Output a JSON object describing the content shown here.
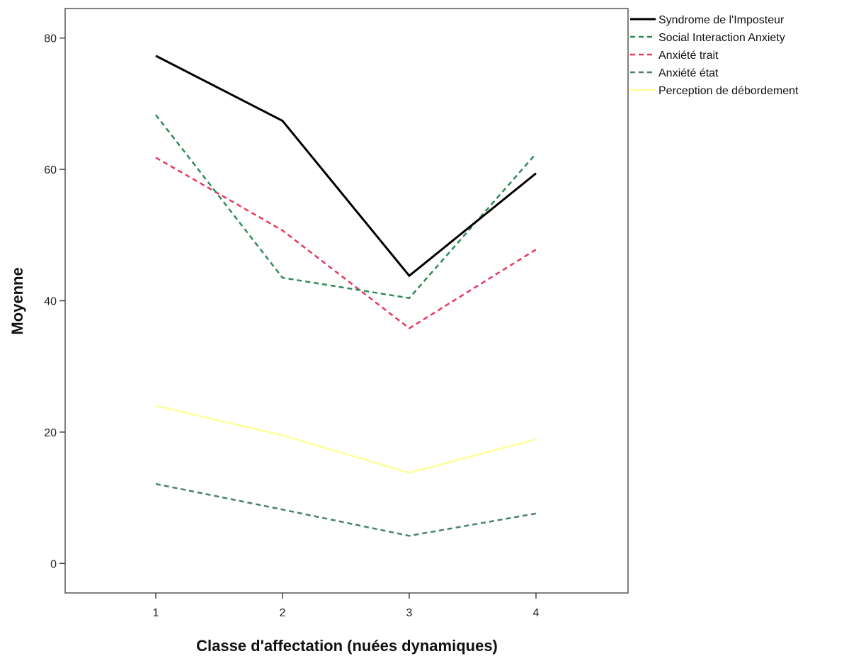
{
  "chart_data": {
    "type": "line",
    "xlabel": "Classe d'affectation (nuées dynamiques)",
    "ylabel": "Moyenne",
    "categories": [
      "1",
      "2",
      "3",
      "4"
    ],
    "y_ticks": [
      "0",
      "20",
      "40",
      "60",
      "80"
    ],
    "ylim": [
      -4.5,
      84.5
    ],
    "grid": false,
    "legend_position": "right-outside",
    "series": [
      {
        "name": "Syndrome de l'Imposteur",
        "values": [
          77.3,
          67.4,
          43.8,
          59.4
        ],
        "color": "#000000",
        "style": "solid"
      },
      {
        "name": "Social Interaction Anxiety",
        "values": [
          68.3,
          43.5,
          40.4,
          62.4
        ],
        "color": "#2e8b57",
        "style": "dashed"
      },
      {
        "name": "Anxiété trait",
        "values": [
          61.8,
          50.7,
          35.8,
          47.8
        ],
        "color": "#e8385e",
        "style": "dashed"
      },
      {
        "name": "Anxiété état",
        "values": [
          12.1,
          8.2,
          4.2,
          7.6
        ],
        "color": "#4a7f73",
        "style": "dashed"
      },
      {
        "name": "Perception de débordement",
        "values": [
          24.0,
          19.5,
          13.8,
          18.9
        ],
        "color": "#ffff9a",
        "style": "solid"
      }
    ]
  }
}
